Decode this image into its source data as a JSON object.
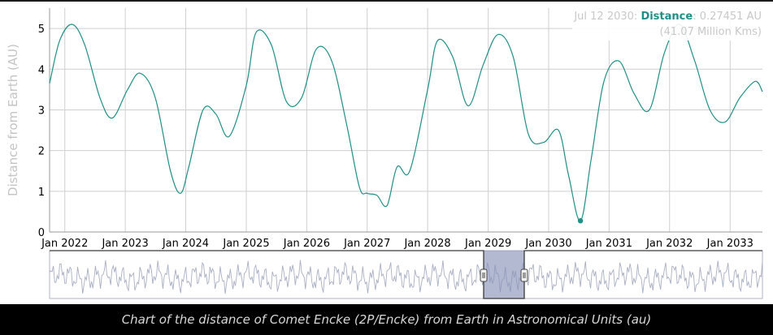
{
  "tooltip": {
    "date": "Jul 12 2030:",
    "series_name": "Distance",
    "value_text": ": 0.27451 AU",
    "secondary_text": "(41.07 Million Kms)"
  },
  "caption": "Chart of the distance of Comet Encke (2P/Encke) from Earth in Astronomical Units (au)",
  "colors": {
    "series": "#1f8f87",
    "caption_background": "#000000",
    "navigator_mask": "#8a93b8"
  },
  "chart_data": {
    "type": "line",
    "title": "",
    "xlabel": "",
    "ylabel": "Distance from Earth (AU)",
    "ylim": [
      0,
      5.5
    ],
    "xlim": [
      "2021-10-01",
      "2033-07-15"
    ],
    "yticks": [
      "0",
      "1",
      "2",
      "3",
      "4",
      "5"
    ],
    "xticks": [
      {
        "date": "2022-01-01",
        "label": "Jan 2022"
      },
      {
        "date": "2023-01-01",
        "label": "Jan 2023"
      },
      {
        "date": "2024-01-01",
        "label": "Jan 2024"
      },
      {
        "date": "2025-01-01",
        "label": "Jan 2025"
      },
      {
        "date": "2026-01-01",
        "label": "Jan 2026"
      },
      {
        "date": "2027-01-01",
        "label": "Jan 2027"
      },
      {
        "date": "2028-01-01",
        "label": "Jan 2028"
      },
      {
        "date": "2029-01-01",
        "label": "Jan 2029"
      },
      {
        "date": "2030-01-01",
        "label": "Jan 2030"
      },
      {
        "date": "2031-01-01",
        "label": "Jan 2031"
      },
      {
        "date": "2032-01-01",
        "label": "Jan 2032"
      },
      {
        "date": "2033-01-01",
        "label": "Jan 2033"
      }
    ],
    "grid": true,
    "legend": "none",
    "series": [
      {
        "name": "Distance",
        "x": [
          "2021-10-01",
          "2021-12-01",
          "2022-02-15",
          "2022-05-01",
          "2022-08-01",
          "2022-10-15",
          "2023-01-15",
          "2023-04-01",
          "2023-07-01",
          "2023-10-01",
          "2023-12-01",
          "2024-01-20",
          "2024-04-15",
          "2024-07-01",
          "2024-09-20",
          "2025-01-01",
          "2025-03-01",
          "2025-06-01",
          "2025-09-01",
          "2025-12-01",
          "2026-03-01",
          "2026-06-01",
          "2026-09-01",
          "2026-11-15",
          "2027-01-01",
          "2027-03-01",
          "2027-05-01",
          "2027-07-01",
          "2027-09-15",
          "2028-01-01",
          "2028-03-01",
          "2028-06-01",
          "2028-09-01",
          "2028-12-01",
          "2029-03-01",
          "2029-06-01",
          "2029-09-01",
          "2029-12-01",
          "2030-03-01",
          "2030-05-01",
          "2030-07-12",
          "2030-09-15",
          "2030-12-01",
          "2031-03-01",
          "2031-06-01",
          "2031-09-01",
          "2031-12-01",
          "2032-03-01",
          "2032-06-01",
          "2032-09-01",
          "2032-12-01",
          "2033-03-01",
          "2033-06-01",
          "2033-07-15"
        ],
        "y": [
          3.65,
          4.7,
          5.1,
          4.6,
          3.3,
          2.8,
          3.5,
          3.9,
          3.3,
          1.5,
          0.95,
          1.6,
          3.0,
          2.9,
          2.35,
          3.6,
          4.9,
          4.6,
          3.2,
          3.3,
          4.5,
          4.2,
          2.6,
          1.1,
          0.95,
          0.9,
          0.65,
          1.6,
          1.5,
          3.5,
          4.7,
          4.3,
          3.1,
          4.1,
          4.85,
          4.3,
          2.4,
          2.2,
          2.5,
          1.4,
          0.27451,
          1.8,
          3.7,
          4.2,
          3.4,
          3.0,
          4.4,
          5.1,
          4.2,
          3.0,
          2.7,
          3.3,
          3.7,
          3.45
        ]
      }
    ],
    "highlight": {
      "x": "2030-07-12",
      "y": 0.27451
    },
    "navigator": {
      "selected_range": [
        "2021-10-01",
        "2033-07-15"
      ]
    }
  }
}
